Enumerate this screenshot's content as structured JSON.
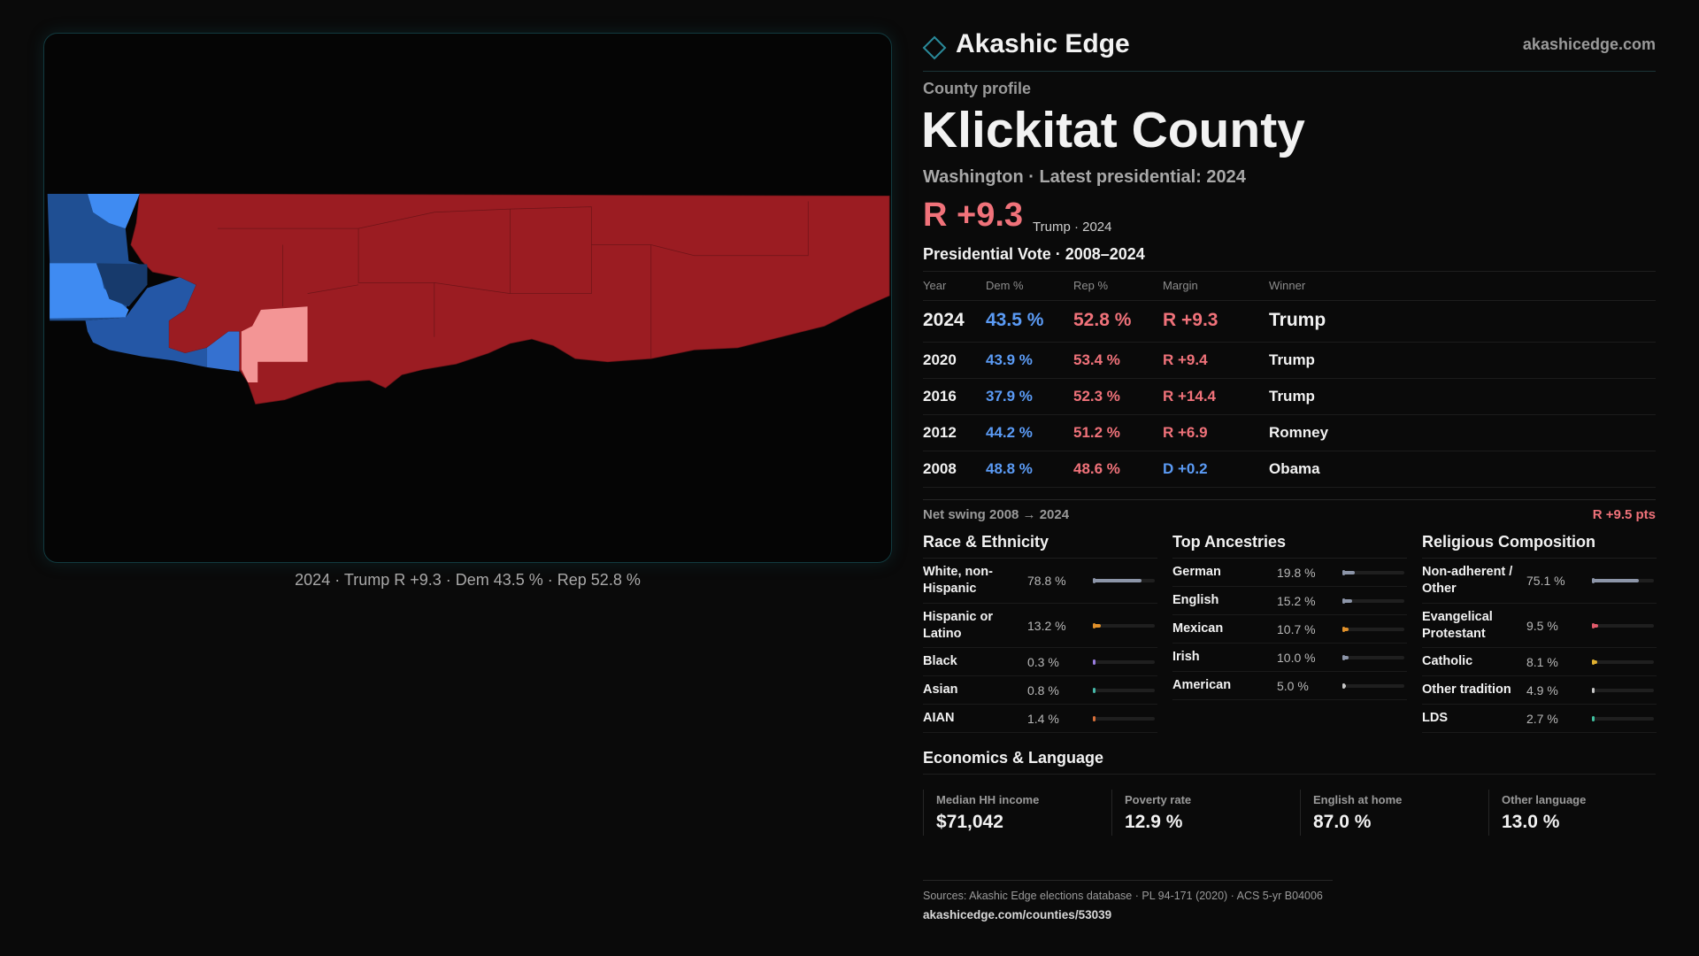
{
  "header": {
    "brand": "Akashic Edge",
    "site": "akashicedge.com"
  },
  "map": {
    "caption": "2024 · Trump R +9.3 · Dem 43.5 % · Rep 52.8 %"
  },
  "profile": {
    "kicker": "County profile",
    "title": "Klickitat County",
    "subtitle": "Washington · Latest presidential: 2024",
    "headline_margin": "R +9.3",
    "headline_note": "Trump · 2024"
  },
  "vote_table": {
    "title": "Presidential Vote · 2008–2024",
    "columns": [
      "Year",
      "Dem %",
      "Rep %",
      "Margin",
      "Winner"
    ],
    "rows": [
      [
        "2024",
        "43.5 %",
        "52.8 %",
        "R +9.3",
        "Trump"
      ],
      [
        "2020",
        "43.9 %",
        "53.4 %",
        "R +9.4",
        "Trump"
      ],
      [
        "2016",
        "37.9 %",
        "52.3 %",
        "R +14.4",
        "Trump"
      ],
      [
        "2012",
        "44.2 %",
        "51.2 %",
        "R +6.9",
        "Romney"
      ],
      [
        "2008",
        "48.8 %",
        "48.6 %",
        "D +0.2",
        "Obama"
      ]
    ],
    "margin_colors": [
      "#f0727a",
      "#f0727a",
      "#f0727a",
      "#f0727a",
      "#5b9bf5"
    ],
    "net_swing_label": "Net swing 2008 → 2024",
    "net_swing_value": "R +9.5 pts"
  },
  "race": {
    "title": "Race & Ethnicity",
    "items": [
      {
        "name": "White, non-Hispanic",
        "value": 78.8,
        "label": "78.8 %",
        "color": "#8c95a8"
      },
      {
        "name": "Hispanic or Latino",
        "value": 13.2,
        "label": "13.2 %",
        "color": "#e0902a"
      },
      {
        "name": "Black",
        "value": 0.3,
        "label": "0.3 %",
        "color": "#9a7ee0"
      },
      {
        "name": "Asian",
        "value": 0.8,
        "label": "0.8 %",
        "color": "#46b8a8"
      },
      {
        "name": "AIAN",
        "value": 1.4,
        "label": "1.4 %",
        "color": "#d8703a"
      }
    ]
  },
  "ancestry": {
    "title": "Top Ancestries",
    "items": [
      {
        "name": "German",
        "value": 19.8,
        "label": "19.8 %",
        "color": "#8c95a8"
      },
      {
        "name": "English",
        "value": 15.2,
        "label": "15.2 %",
        "color": "#8c95a8"
      },
      {
        "name": "Mexican",
        "value": 10.7,
        "label": "10.7 %",
        "color": "#e0902a"
      },
      {
        "name": "Irish",
        "value": 10.0,
        "label": "10.0 %",
        "color": "#8c95a8"
      },
      {
        "name": "American",
        "value": 5.0,
        "label": "5.0 %",
        "color": "#c8c8c8"
      }
    ]
  },
  "religion": {
    "title": "Religious Composition",
    "items": [
      {
        "name": "Non-adherent / Other",
        "value": 75.1,
        "label": "75.1 %",
        "color": "#8c95a8"
      },
      {
        "name": "Evangelical Protestant",
        "value": 9.5,
        "label": "9.5 %",
        "color": "#e05a6a"
      },
      {
        "name": "Catholic",
        "value": 8.1,
        "label": "8.1 %",
        "color": "#e0b030"
      },
      {
        "name": "Other tradition",
        "value": 4.9,
        "label": "4.9 %",
        "color": "#c8c8c8"
      },
      {
        "name": "LDS",
        "value": 2.7,
        "label": "2.7 %",
        "color": "#40c0a0"
      }
    ]
  },
  "economics": {
    "title": "Economics & Language",
    "stats": [
      {
        "label": "Median HH income",
        "value": "$71,042"
      },
      {
        "label": "Poverty rate",
        "value": "12.9 %"
      },
      {
        "label": "English at home",
        "value": "87.0 %"
      },
      {
        "label": "Other language",
        "value": "13.0 %"
      }
    ]
  },
  "footer": {
    "sources": "Sources: Akashic Edge elections database · PL 94-171 (2020) · ACS 5-yr B04006",
    "url": "akashicedge.com/counties/53039"
  }
}
